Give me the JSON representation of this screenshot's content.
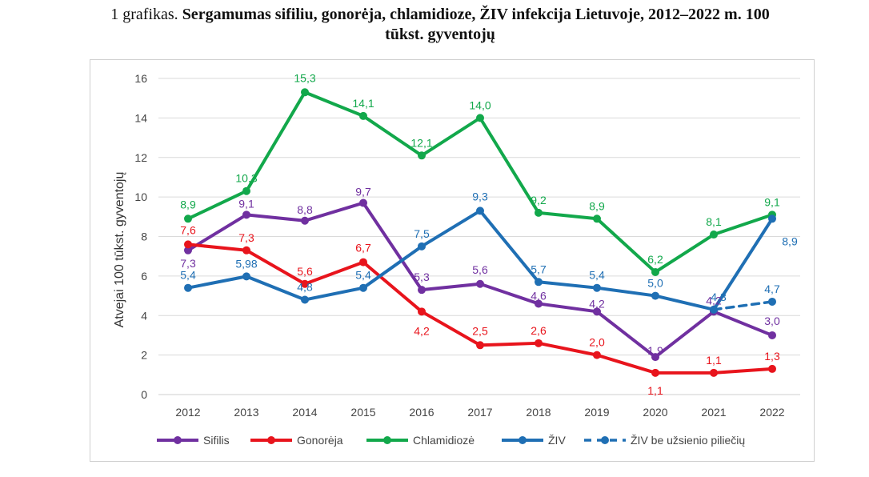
{
  "caption": {
    "prefix": "1 grafikas.",
    "title_line1": "Sergamumas sifiliu, gonorėja, chlamidioze, ŽIV infekcija Lietuvoje, 2012–2022 m. 100",
    "title_line2": "tūkst. gyventojų"
  },
  "chart_data": {
    "type": "line",
    "categories": [
      "2012",
      "2013",
      "2014",
      "2015",
      "2016",
      "2017",
      "2018",
      "2019",
      "2020",
      "2021",
      "2022"
    ],
    "ylabel": "Atvejai 100 tūkst. gyventojų",
    "ylim": [
      0,
      16
    ],
    "yticks": [
      0,
      2,
      4,
      6,
      8,
      10,
      12,
      14,
      16
    ],
    "grid": true,
    "legend_position": "bottom",
    "series": [
      {
        "name": "Sifilis",
        "color": "#7030a0",
        "dash": false,
        "values": [
          7.3,
          9.1,
          8.8,
          9.7,
          5.3,
          5.6,
          4.6,
          4.2,
          1.9,
          4.2,
          3.0
        ],
        "labels": [
          "7,3",
          "9,1",
          "8,8",
          "9,7",
          "5,3",
          "5,6",
          "4,6",
          "4,2",
          "1,9",
          "4,2",
          "3,0"
        ]
      },
      {
        "name": "Gonorėja",
        "color": "#e8141c",
        "dash": false,
        "values": [
          7.6,
          7.3,
          5.6,
          6.7,
          4.2,
          2.5,
          2.6,
          2.0,
          1.1,
          1.1,
          1.3
        ],
        "labels": [
          "7,6",
          "7,3",
          "5,6",
          "6,7",
          "4,2",
          "2,5",
          "2,6",
          "2,0",
          "1,1",
          "1,1",
          "1,3"
        ]
      },
      {
        "name": "Chlamidiozė",
        "color": "#12a84b",
        "dash": false,
        "values": [
          8.9,
          10.3,
          15.3,
          14.1,
          12.1,
          14.0,
          9.2,
          8.9,
          6.2,
          8.1,
          9.1
        ],
        "labels": [
          "8,9",
          "10,3",
          "15,3",
          "14,1",
          "12,1",
          "14,0",
          "9,2",
          "8,9",
          "6,2",
          "8,1",
          "9,1"
        ]
      },
      {
        "name": "ŽIV",
        "color": "#1f6fb4",
        "dash": false,
        "values": [
          5.4,
          5.98,
          4.8,
          5.4,
          7.5,
          9.3,
          5.7,
          5.4,
          5.0,
          4.3,
          8.9
        ],
        "labels": [
          "5,4",
          "5,98",
          "4,8",
          "5,4",
          "7,5",
          "9,3",
          "5,7",
          "5,4",
          "5,0",
          "4,3",
          "8,9"
        ]
      },
      {
        "name": "ŽIV be užsienio piliečių",
        "color": "#1f6fb4",
        "dash": true,
        "x": [
          "2021",
          "2022"
        ],
        "values": [
          4.3,
          4.7
        ],
        "labels": [
          "",
          "4,7"
        ]
      }
    ]
  }
}
